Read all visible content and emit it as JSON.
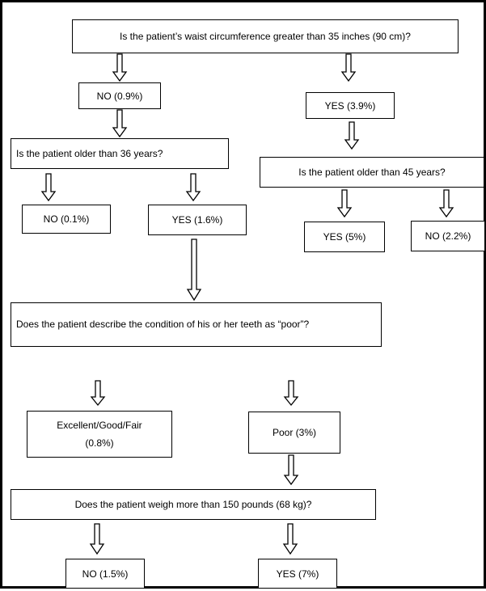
{
  "nodes": {
    "q_waist": "Is the patient’s waist circumference greater than 35 inches (90 cm)?",
    "waist_no": "NO (0.9%)",
    "waist_yes": "YES (3.9%)",
    "q_age36": "Is the patient older than 36 years?",
    "age36_no": "NO (0.1%)",
    "age36_yes": "YES (1.6%)",
    "q_age45": "Is the patient older than 45 years?",
    "age45_yes": "YES (5%)",
    "age45_no": "NO (2.2%)",
    "q_teeth": "Does the patient describe the condition of his or her teeth as “poor”?",
    "teeth_fair": "Excellent/Good/Fair (0.8%)",
    "teeth_poor": "Poor (3%)",
    "q_weight": "Does the patient weigh more than 150 pounds (68 kg)?",
    "weight_no": "NO (1.5%)",
    "weight_yes": "YES (7%)"
  }
}
